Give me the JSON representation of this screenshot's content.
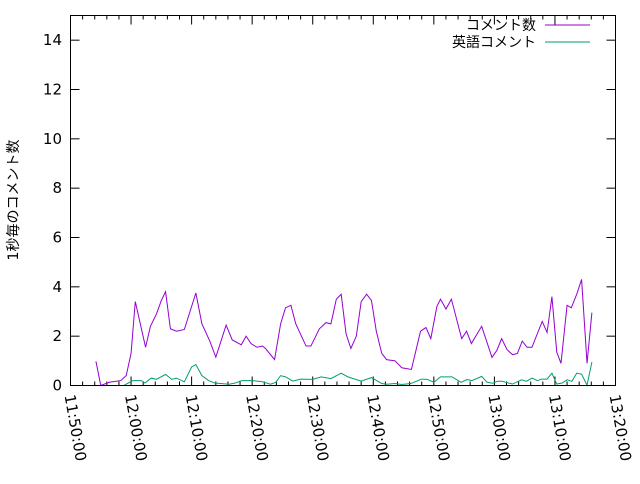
{
  "chart_data": {
    "type": "line",
    "title": "",
    "xlabel": "",
    "ylabel": "1秒毎のコメント数",
    "xlim": [
      "11:50:00",
      "13:20:00"
    ],
    "ylim": [
      0,
      15
    ],
    "x_ticks": [
      "11:50:00",
      "12:00:00",
      "12:10:00",
      "12:20:00",
      "12:30:00",
      "12:40:00",
      "12:50:00",
      "13:00:00",
      "13:10:00",
      "13:20:00"
    ],
    "y_ticks": [
      "0",
      "2",
      "4",
      "6",
      "8",
      "10",
      "12",
      "14"
    ],
    "grid": false,
    "legend_position": "top-right",
    "series": [
      {
        "name": "コメント数",
        "color": "#9400d3",
        "points": [
          [
            "11:54:12",
            0.98
          ],
          [
            "11:55:00",
            0
          ],
          [
            "11:56:24",
            0.13
          ],
          [
            "11:58:18",
            0.2
          ],
          [
            "11:59:12",
            0.4
          ],
          [
            "12:00:00",
            1.3
          ],
          [
            "12:00:42",
            3.4
          ],
          [
            "12:02:24",
            1.55
          ],
          [
            "12:03:12",
            2.4
          ],
          [
            "12:04:12",
            2.9
          ],
          [
            "12:05:00",
            3.45
          ],
          [
            "12:05:42",
            3.8
          ],
          [
            "12:06:30",
            2.3
          ],
          [
            "12:07:30",
            2.2
          ],
          [
            "12:08:48",
            2.27
          ],
          [
            "12:10:42",
            3.75
          ],
          [
            "12:11:42",
            2.5
          ],
          [
            "12:13:00",
            1.8
          ],
          [
            "12:14:00",
            1.15
          ],
          [
            "12:15:42",
            2.45
          ],
          [
            "12:16:42",
            1.85
          ],
          [
            "12:18:12",
            1.65
          ],
          [
            "12:19:00",
            2.0
          ],
          [
            "12:19:48",
            1.7
          ],
          [
            "12:20:48",
            1.55
          ],
          [
            "12:21:42",
            1.6
          ],
          [
            "12:22:12",
            1.5
          ],
          [
            "12:23:42",
            1.05
          ],
          [
            "12:24:42",
            2.5
          ],
          [
            "12:25:30",
            3.15
          ],
          [
            "12:26:24",
            3.25
          ],
          [
            "12:27:12",
            2.5
          ],
          [
            "12:28:54",
            1.6
          ],
          [
            "12:29:42",
            1.6
          ],
          [
            "12:31:06",
            2.3
          ],
          [
            "12:32:12",
            2.55
          ],
          [
            "12:33:00",
            2.5
          ],
          [
            "12:33:54",
            3.5
          ],
          [
            "12:34:42",
            3.7
          ],
          [
            "12:35:30",
            2.1
          ],
          [
            "12:36:18",
            1.5
          ],
          [
            "12:37:12",
            2.0
          ],
          [
            "12:38:00",
            3.4
          ],
          [
            "12:38:54",
            3.7
          ],
          [
            "12:39:42",
            3.45
          ],
          [
            "12:40:30",
            2.2
          ],
          [
            "12:41:24",
            1.3
          ],
          [
            "12:42:12",
            1.05
          ],
          [
            "12:43:36",
            1.0
          ],
          [
            "12:44:42",
            0.72
          ],
          [
            "12:46:18",
            0.65
          ],
          [
            "12:47:48",
            2.2
          ],
          [
            "12:48:42",
            2.35
          ],
          [
            "12:49:30",
            1.9
          ],
          [
            "12:50:30",
            3.2
          ],
          [
            "12:51:06",
            3.5
          ],
          [
            "12:52:00",
            3.1
          ],
          [
            "12:52:54",
            3.5
          ],
          [
            "12:54:36",
            1.9
          ],
          [
            "12:55:24",
            2.2
          ],
          [
            "12:56:12",
            1.7
          ],
          [
            "12:57:54",
            2.4
          ],
          [
            "12:59:36",
            1.14
          ],
          [
            "13:00:24",
            1.42
          ],
          [
            "13:01:12",
            1.9
          ],
          [
            "13:02:06",
            1.45
          ],
          [
            "13:03:00",
            1.25
          ],
          [
            "13:03:48",
            1.3
          ],
          [
            "13:04:36",
            1.8
          ],
          [
            "13:05:24",
            1.55
          ],
          [
            "13:06:12",
            1.55
          ],
          [
            "13:07:54",
            2.6
          ],
          [
            "13:08:42",
            2.15
          ],
          [
            "13:09:30",
            3.6
          ],
          [
            "13:10:18",
            1.35
          ],
          [
            "13:11:00",
            0.9
          ],
          [
            "13:12:00",
            3.25
          ],
          [
            "13:12:42",
            3.15
          ],
          [
            "13:13:36",
            3.7
          ],
          [
            "13:14:24",
            4.3
          ],
          [
            "13:15:18",
            0.9
          ],
          [
            "13:16:06",
            2.95
          ]
        ]
      },
      {
        "name": "英語コメント",
        "color": "#009e73",
        "points": [
          [
            "11:55:00",
            0
          ],
          [
            "11:58:48",
            0
          ],
          [
            "12:00:18",
            0.2
          ],
          [
            "12:01:42",
            0.2
          ],
          [
            "12:02:18",
            0.1
          ],
          [
            "12:03:18",
            0.3
          ],
          [
            "12:04:12",
            0.25
          ],
          [
            "12:05:42",
            0.45
          ],
          [
            "12:06:42",
            0.25
          ],
          [
            "12:07:30",
            0.3
          ],
          [
            "12:08:48",
            0.15
          ],
          [
            "12:10:00",
            0.75
          ],
          [
            "12:10:42",
            0.85
          ],
          [
            "12:11:42",
            0.4
          ],
          [
            "12:12:48",
            0.2
          ],
          [
            "12:13:48",
            0.1
          ],
          [
            "12:16:12",
            0.05
          ],
          [
            "12:17:12",
            0.1
          ],
          [
            "12:18:18",
            0.2
          ],
          [
            "12:20:00",
            0.2
          ],
          [
            "12:21:42",
            0.15
          ],
          [
            "12:23:00",
            0.05
          ],
          [
            "12:23:54",
            0.13
          ],
          [
            "12:24:42",
            0.4
          ],
          [
            "12:25:30",
            0.35
          ],
          [
            "12:26:42",
            0.18
          ],
          [
            "12:28:00",
            0.26
          ],
          [
            "12:30:00",
            0.25
          ],
          [
            "12:31:24",
            0.35
          ],
          [
            "12:33:00",
            0.28
          ],
          [
            "12:34:42",
            0.5
          ],
          [
            "12:35:48",
            0.35
          ],
          [
            "12:38:00",
            0.18
          ],
          [
            "12:39:42",
            0.32
          ],
          [
            "12:41:24",
            0.08
          ],
          [
            "12:42:12",
            0.05
          ],
          [
            "12:43:36",
            0.08
          ],
          [
            "12:44:42",
            0.04
          ],
          [
            "12:46:12",
            0.08
          ],
          [
            "12:48:00",
            0.26
          ],
          [
            "12:48:54",
            0.25
          ],
          [
            "12:50:00",
            0.13
          ],
          [
            "12:51:06",
            0.35
          ],
          [
            "12:53:00",
            0.35
          ],
          [
            "12:54:30",
            0.13
          ],
          [
            "12:55:30",
            0.24
          ],
          [
            "12:56:18",
            0.2
          ],
          [
            "12:57:54",
            0.37
          ],
          [
            "12:58:48",
            0.13
          ],
          [
            "12:59:42",
            0.09
          ],
          [
            "13:00:30",
            0.17
          ],
          [
            "13:01:18",
            0.17
          ],
          [
            "13:02:30",
            0.09
          ],
          [
            "13:03:00",
            0.06
          ],
          [
            "13:04:30",
            0.23
          ],
          [
            "13:05:18",
            0.17
          ],
          [
            "13:06:12",
            0.3
          ],
          [
            "13:07:06",
            0.2
          ],
          [
            "13:07:48",
            0.26
          ],
          [
            "13:08:42",
            0.26
          ],
          [
            "13:09:30",
            0.5
          ],
          [
            "13:10:18",
            0.06
          ],
          [
            "13:11:12",
            0.1
          ],
          [
            "13:12:00",
            0.23
          ],
          [
            "13:12:48",
            0.17
          ],
          [
            "13:13:36",
            0.5
          ],
          [
            "13:14:24",
            0.46
          ],
          [
            "13:15:18",
            0.01
          ],
          [
            "13:16:06",
            0.95
          ]
        ]
      }
    ]
  }
}
